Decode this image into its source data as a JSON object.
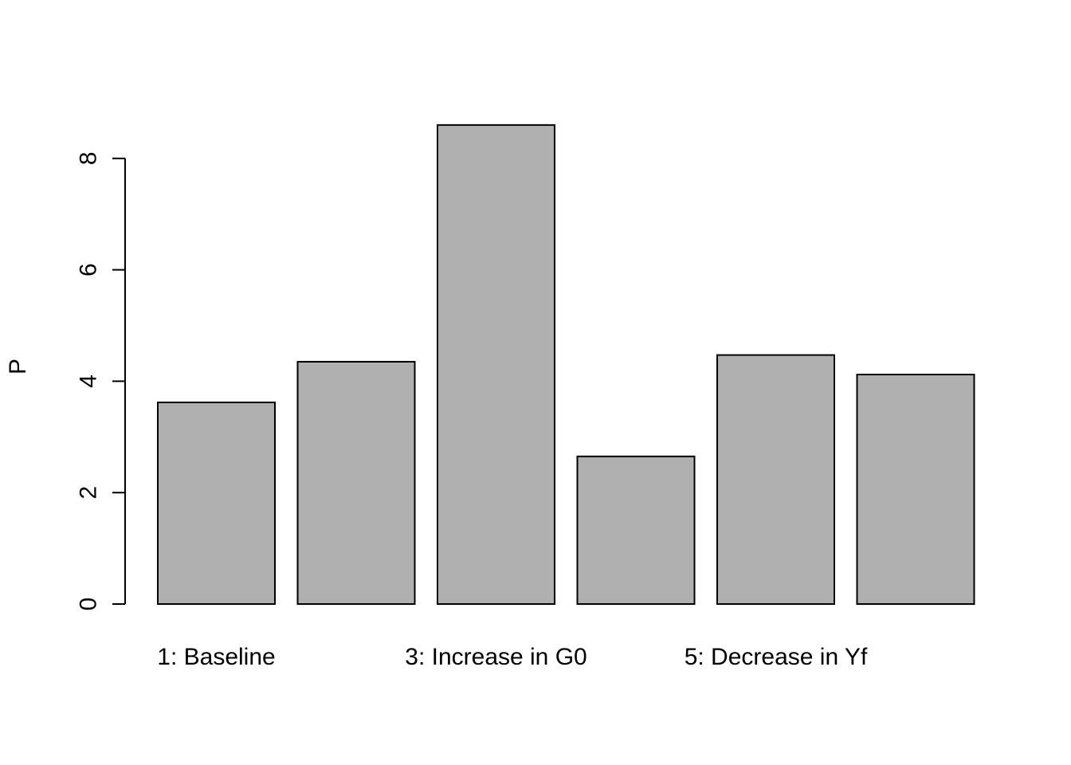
{
  "chart_data": {
    "type": "bar",
    "title": "",
    "xlabel": "",
    "ylabel": "P",
    "ylim": [
      0,
      8.6
    ],
    "yticks": [
      0,
      2,
      4,
      6,
      8
    ],
    "bar_color": "#b0b0b0",
    "categories": [
      "1: Baseline",
      "",
      "3: Increase in G0",
      "",
      "5: Decrease in Yf",
      ""
    ],
    "values": [
      3.62,
      4.35,
      8.6,
      2.65,
      4.47,
      4.12
    ],
    "grid": false
  }
}
